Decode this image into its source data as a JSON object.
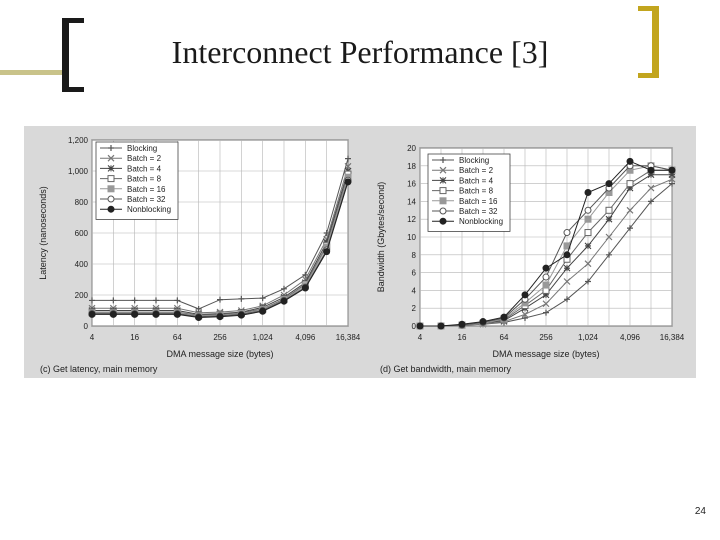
{
  "slide": {
    "title": "Interconnect Performance [3]",
    "page_number": "24"
  },
  "colors": {
    "bracket_dark": "#1a1a1a",
    "bracket_gold": "#c2a51e",
    "panel_background": "#d9d9d9",
    "plot_background": "#ffffff"
  },
  "chart_data": [
    {
      "type": "line",
      "caption": "(c) Get latency, main memory",
      "xlabel": "DMA message size (bytes)",
      "ylabel": "Latency (nanoseconds)",
      "x": [
        4,
        8,
        16,
        32,
        64,
        128,
        256,
        512,
        1024,
        2048,
        4096,
        8192,
        16384
      ],
      "xticks": [
        4,
        16,
        64,
        256,
        1024,
        4096,
        16384
      ],
      "xtick_labels": [
        "4",
        "16",
        "64",
        "256",
        "1,024",
        "4,096",
        "16,384"
      ],
      "xscale": "log2",
      "xlim": [
        4,
        16384
      ],
      "ylim": [
        0,
        1200
      ],
      "yticks": [
        0,
        200,
        400,
        600,
        800,
        1000,
        1200
      ],
      "ytick_labels": [
        "0",
        "200",
        "400",
        "600",
        "800",
        "1,000",
        "1,200"
      ],
      "grid": true,
      "legend_position": "top-left",
      "series": [
        {
          "name": "Blocking",
          "marker": "plus",
          "color": "#555555",
          "values": [
            165,
            165,
            165,
            165,
            165,
            110,
            170,
            175,
            180,
            240,
            330,
            600,
            1080
          ]
        },
        {
          "name": "Batch = 2",
          "marker": "x",
          "color": "#777777",
          "values": [
            115,
            115,
            115,
            115,
            115,
            85,
            90,
            100,
            130,
            200,
            300,
            560,
            1030
          ]
        },
        {
          "name": "Batch = 4",
          "marker": "star",
          "color": "#444444",
          "values": [
            100,
            100,
            100,
            100,
            100,
            75,
            80,
            90,
            120,
            185,
            280,
            540,
            1000
          ]
        },
        {
          "name": "Batch = 8",
          "marker": "square",
          "color": "#666666",
          "values": [
            90,
            90,
            90,
            90,
            90,
            70,
            75,
            85,
            110,
            175,
            270,
            520,
            980
          ]
        },
        {
          "name": "Batch = 16",
          "marker": "square-filled",
          "color": "#999999",
          "values": [
            85,
            85,
            85,
            85,
            85,
            65,
            70,
            80,
            105,
            170,
            260,
            510,
            960
          ]
        },
        {
          "name": "Batch = 32",
          "marker": "circle",
          "color": "#555555",
          "values": [
            80,
            80,
            80,
            80,
            80,
            60,
            65,
            75,
            100,
            165,
            250,
            490,
            940
          ]
        },
        {
          "name": "Nonblocking",
          "marker": "circle-filled",
          "color": "#222222",
          "values": [
            75,
            75,
            75,
            75,
            75,
            55,
            60,
            70,
            95,
            160,
            245,
            480,
            930
          ]
        }
      ]
    },
    {
      "type": "line",
      "caption": "(d) Get bandwidth, main memory",
      "xlabel": "DMA message size (bytes)",
      "ylabel": "Bandwidth (Gbytes/second)",
      "x": [
        4,
        8,
        16,
        32,
        64,
        128,
        256,
        512,
        1024,
        2048,
        4096,
        8192,
        16384
      ],
      "xticks": [
        4,
        16,
        64,
        256,
        1024,
        4096,
        16384
      ],
      "xtick_labels": [
        "4",
        "16",
        "64",
        "256",
        "1,024",
        "4,096",
        "16,384"
      ],
      "xscale": "log2",
      "xlim": [
        4,
        16384
      ],
      "ylim": [
        0,
        20
      ],
      "yticks": [
        0,
        2,
        4,
        6,
        8,
        10,
        12,
        14,
        16,
        18,
        20
      ],
      "ytick_labels": [
        "0",
        "2",
        "4",
        "6",
        "8",
        "10",
        "12",
        "14",
        "16",
        "18",
        "20"
      ],
      "grid": true,
      "legend_position": "top-left",
      "series": [
        {
          "name": "Blocking",
          "marker": "plus",
          "color": "#555555",
          "values": [
            0,
            0,
            0.1,
            0.2,
            0.4,
            0.9,
            1.5,
            3,
            5,
            8,
            11,
            14,
            16
          ]
        },
        {
          "name": "Batch = 2",
          "marker": "x",
          "color": "#777777",
          "values": [
            0,
            0,
            0.1,
            0.2,
            0.5,
            1.3,
            2.5,
            5,
            7,
            10,
            13,
            15.5,
            16.5
          ]
        },
        {
          "name": "Batch = 4",
          "marker": "star",
          "color": "#444444",
          "values": [
            0,
            0,
            0.1,
            0.3,
            0.6,
            2,
            3.5,
            6.5,
            9,
            12,
            15.5,
            17,
            17
          ]
        },
        {
          "name": "Batch = 8",
          "marker": "square",
          "color": "#666666",
          "values": [
            0,
            0,
            0.1,
            0.3,
            0.7,
            2.3,
            4,
            7.5,
            10.5,
            13,
            16,
            17.5,
            17.5
          ]
        },
        {
          "name": "Batch = 16",
          "marker": "square-filled",
          "color": "#999999",
          "values": [
            0,
            0,
            0.1,
            0.3,
            0.8,
            2.6,
            4.6,
            9,
            12,
            15,
            17.5,
            18,
            17.5
          ]
        },
        {
          "name": "Batch = 32",
          "marker": "circle",
          "color": "#555555",
          "values": [
            0,
            0,
            0.1,
            0.4,
            0.9,
            3,
            5.5,
            10.5,
            13,
            15.5,
            18,
            18,
            17.5
          ]
        },
        {
          "name": "Nonblocking",
          "marker": "circle-filled",
          "color": "#222222",
          "values": [
            0,
            0,
            0.2,
            0.5,
            1,
            3.5,
            6.5,
            8,
            15,
            16,
            18.5,
            17.5,
            17.5
          ]
        }
      ]
    }
  ]
}
